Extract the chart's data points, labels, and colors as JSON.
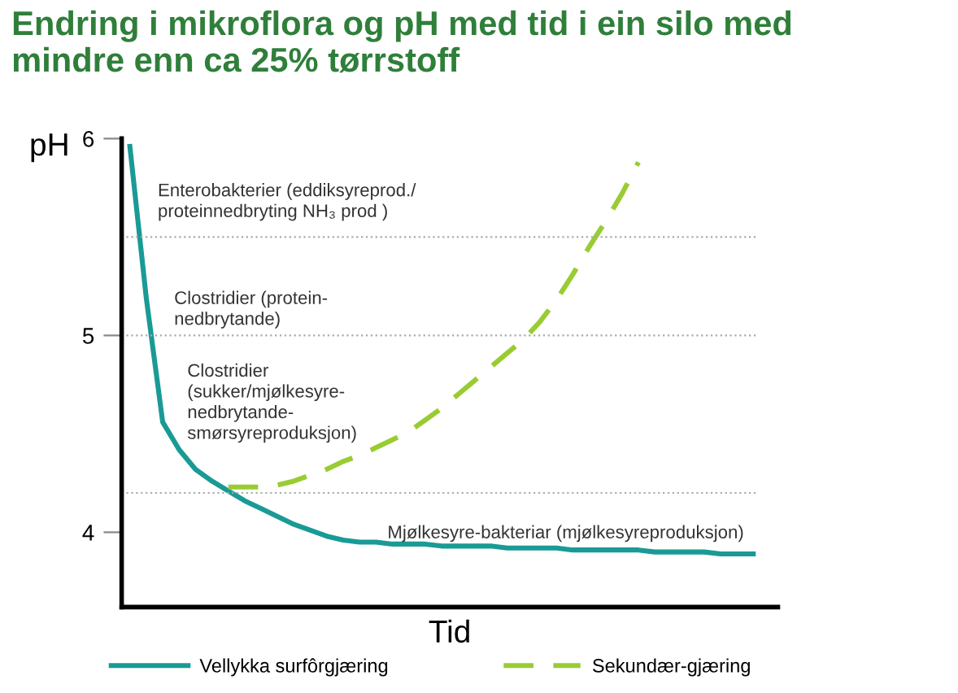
{
  "chart_data": {
    "type": "line",
    "title": "Endring i mikroflora og pH med tid i ein silo med\nmindre enn ca 25% tørrstoff",
    "xlabel": "Tid",
    "ylabel": "pH",
    "categories": [
      null,
      null,
      null,
      null,
      null,
      null,
      null,
      null,
      null,
      null,
      null,
      null,
      null,
      null,
      null,
      null,
      null,
      null,
      null,
      null,
      null,
      null,
      null,
      null,
      null,
      null,
      null,
      null,
      null,
      null,
      null,
      null,
      null,
      null,
      null,
      null,
      null,
      null,
      null
    ],
    "series": [
      {
        "name": "Vellykka surfôrgjæring",
        "color": "#1a9a95",
        "line_style": "solid",
        "values": [
          5.96,
          5.19,
          4.56,
          4.42,
          4.32,
          4.26,
          4.21,
          4.16,
          4.12,
          4.08,
          4.04,
          4.01,
          3.98,
          3.96,
          3.95,
          3.95,
          3.94,
          3.94,
          3.94,
          3.93,
          3.93,
          3.93,
          3.93,
          3.92,
          3.92,
          3.92,
          3.92,
          3.91,
          3.91,
          3.91,
          3.91,
          3.91,
          3.9,
          3.9,
          3.9,
          3.9,
          3.89,
          3.89,
          3.89
        ]
      },
      {
        "name": "Sekundær-gjæring",
        "color": "#99cc33",
        "line_style": "dashed",
        "values": [
          null,
          null,
          null,
          null,
          null,
          null,
          4.23,
          4.23,
          4.23,
          4.24,
          4.26,
          4.29,
          4.32,
          4.36,
          4.39,
          4.43,
          4.47,
          4.51,
          4.57,
          4.63,
          4.7,
          4.77,
          4.84,
          4.91,
          4.98,
          5.07,
          5.18,
          5.31,
          5.45,
          5.58,
          5.72,
          5.88,
          null,
          null,
          null,
          null,
          null,
          null,
          null
        ]
      }
    ],
    "ylim": [
      3.62,
      6
    ],
    "yticks": [
      4,
      5,
      6
    ],
    "grid": false,
    "legend": "bottom",
    "ref_lines": [
      {
        "axis": "y",
        "value": 5.5,
        "color": "#aaaaaa",
        "line_style": "dotted"
      },
      {
        "axis": "y",
        "value": 5,
        "color": "#aaaaaa",
        "line_style": "dotted"
      },
      {
        "axis": "y",
        "value": 4.2,
        "color": "#aaaaaa",
        "line_style": "dotted"
      }
    ],
    "annotations": [
      "Enterobakterier (eddiksyreprod./\nproteinnedbryting NH₃ prod )",
      "Clostridier (protein-\nnedbrytande)",
      "Clostridier\n(sukker/mjølkesyre-\nnedbrytande-\nsmørsyreproduksjon)",
      "Mjølkesyre-bakteriar (mjølkesyreproduksjon)"
    ]
  }
}
